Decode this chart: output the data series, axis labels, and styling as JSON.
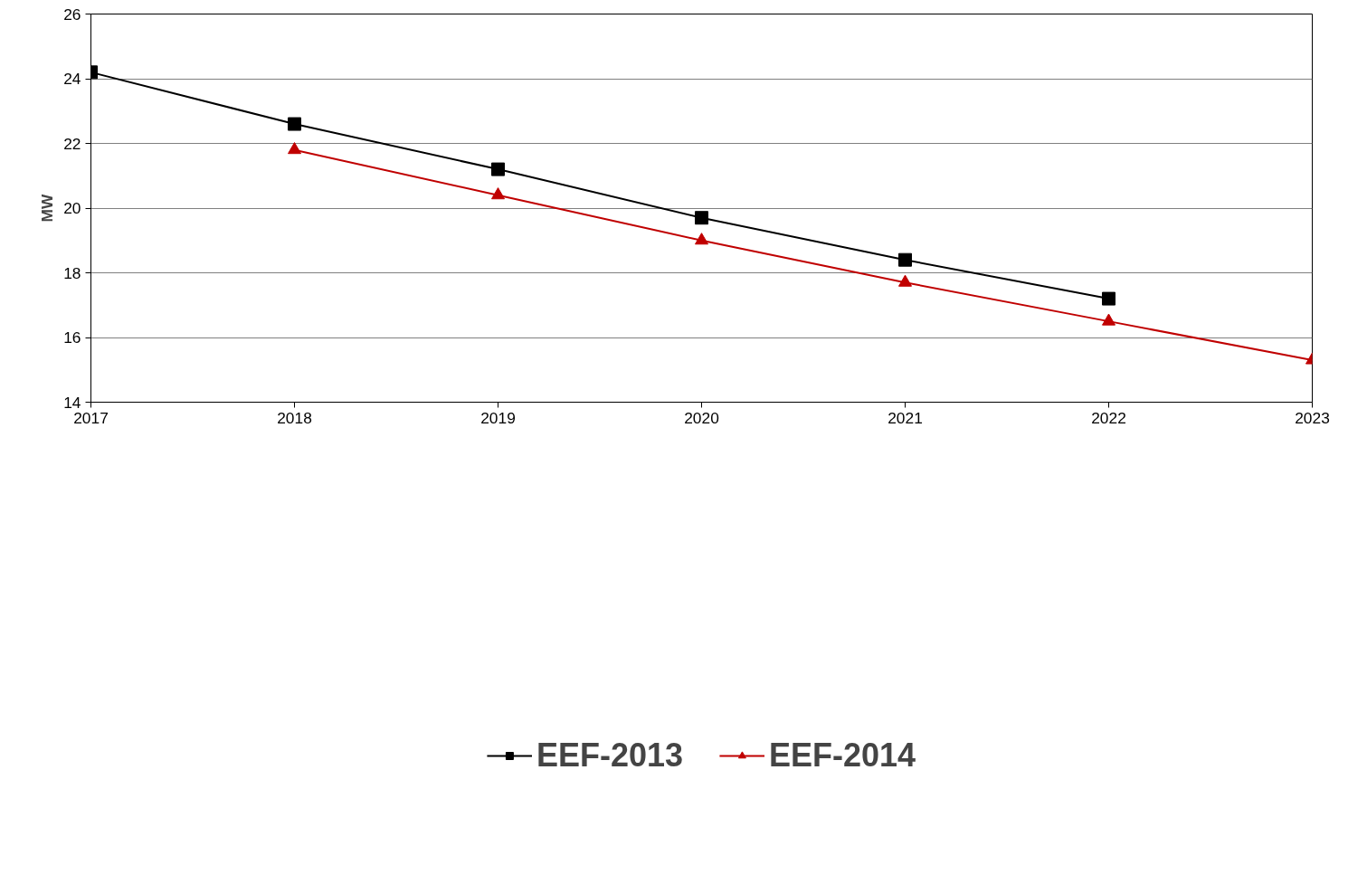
{
  "chart_data": {
    "type": "line",
    "ylabel": "MW",
    "x": [
      2017,
      2018,
      2019,
      2020,
      2021,
      2022,
      2023
    ],
    "xlim": [
      2017,
      2023
    ],
    "xticks": [
      2017,
      2018,
      2019,
      2020,
      2021,
      2022,
      2023
    ],
    "ylim": [
      14,
      26
    ],
    "yticks": [
      14,
      16,
      18,
      20,
      22,
      24,
      26
    ],
    "grid": "y",
    "legend": "bottom",
    "series": [
      {
        "name": "EEF-2013",
        "color": "#000000",
        "marker": "square",
        "values": [
          24.2,
          22.6,
          21.2,
          19.7,
          18.4,
          17.2,
          null
        ]
      },
      {
        "name": "EEF-2014",
        "color": "#c00000",
        "marker": "triangle",
        "values": [
          null,
          21.8,
          20.4,
          19.0,
          17.7,
          16.5,
          15.3
        ]
      }
    ]
  }
}
